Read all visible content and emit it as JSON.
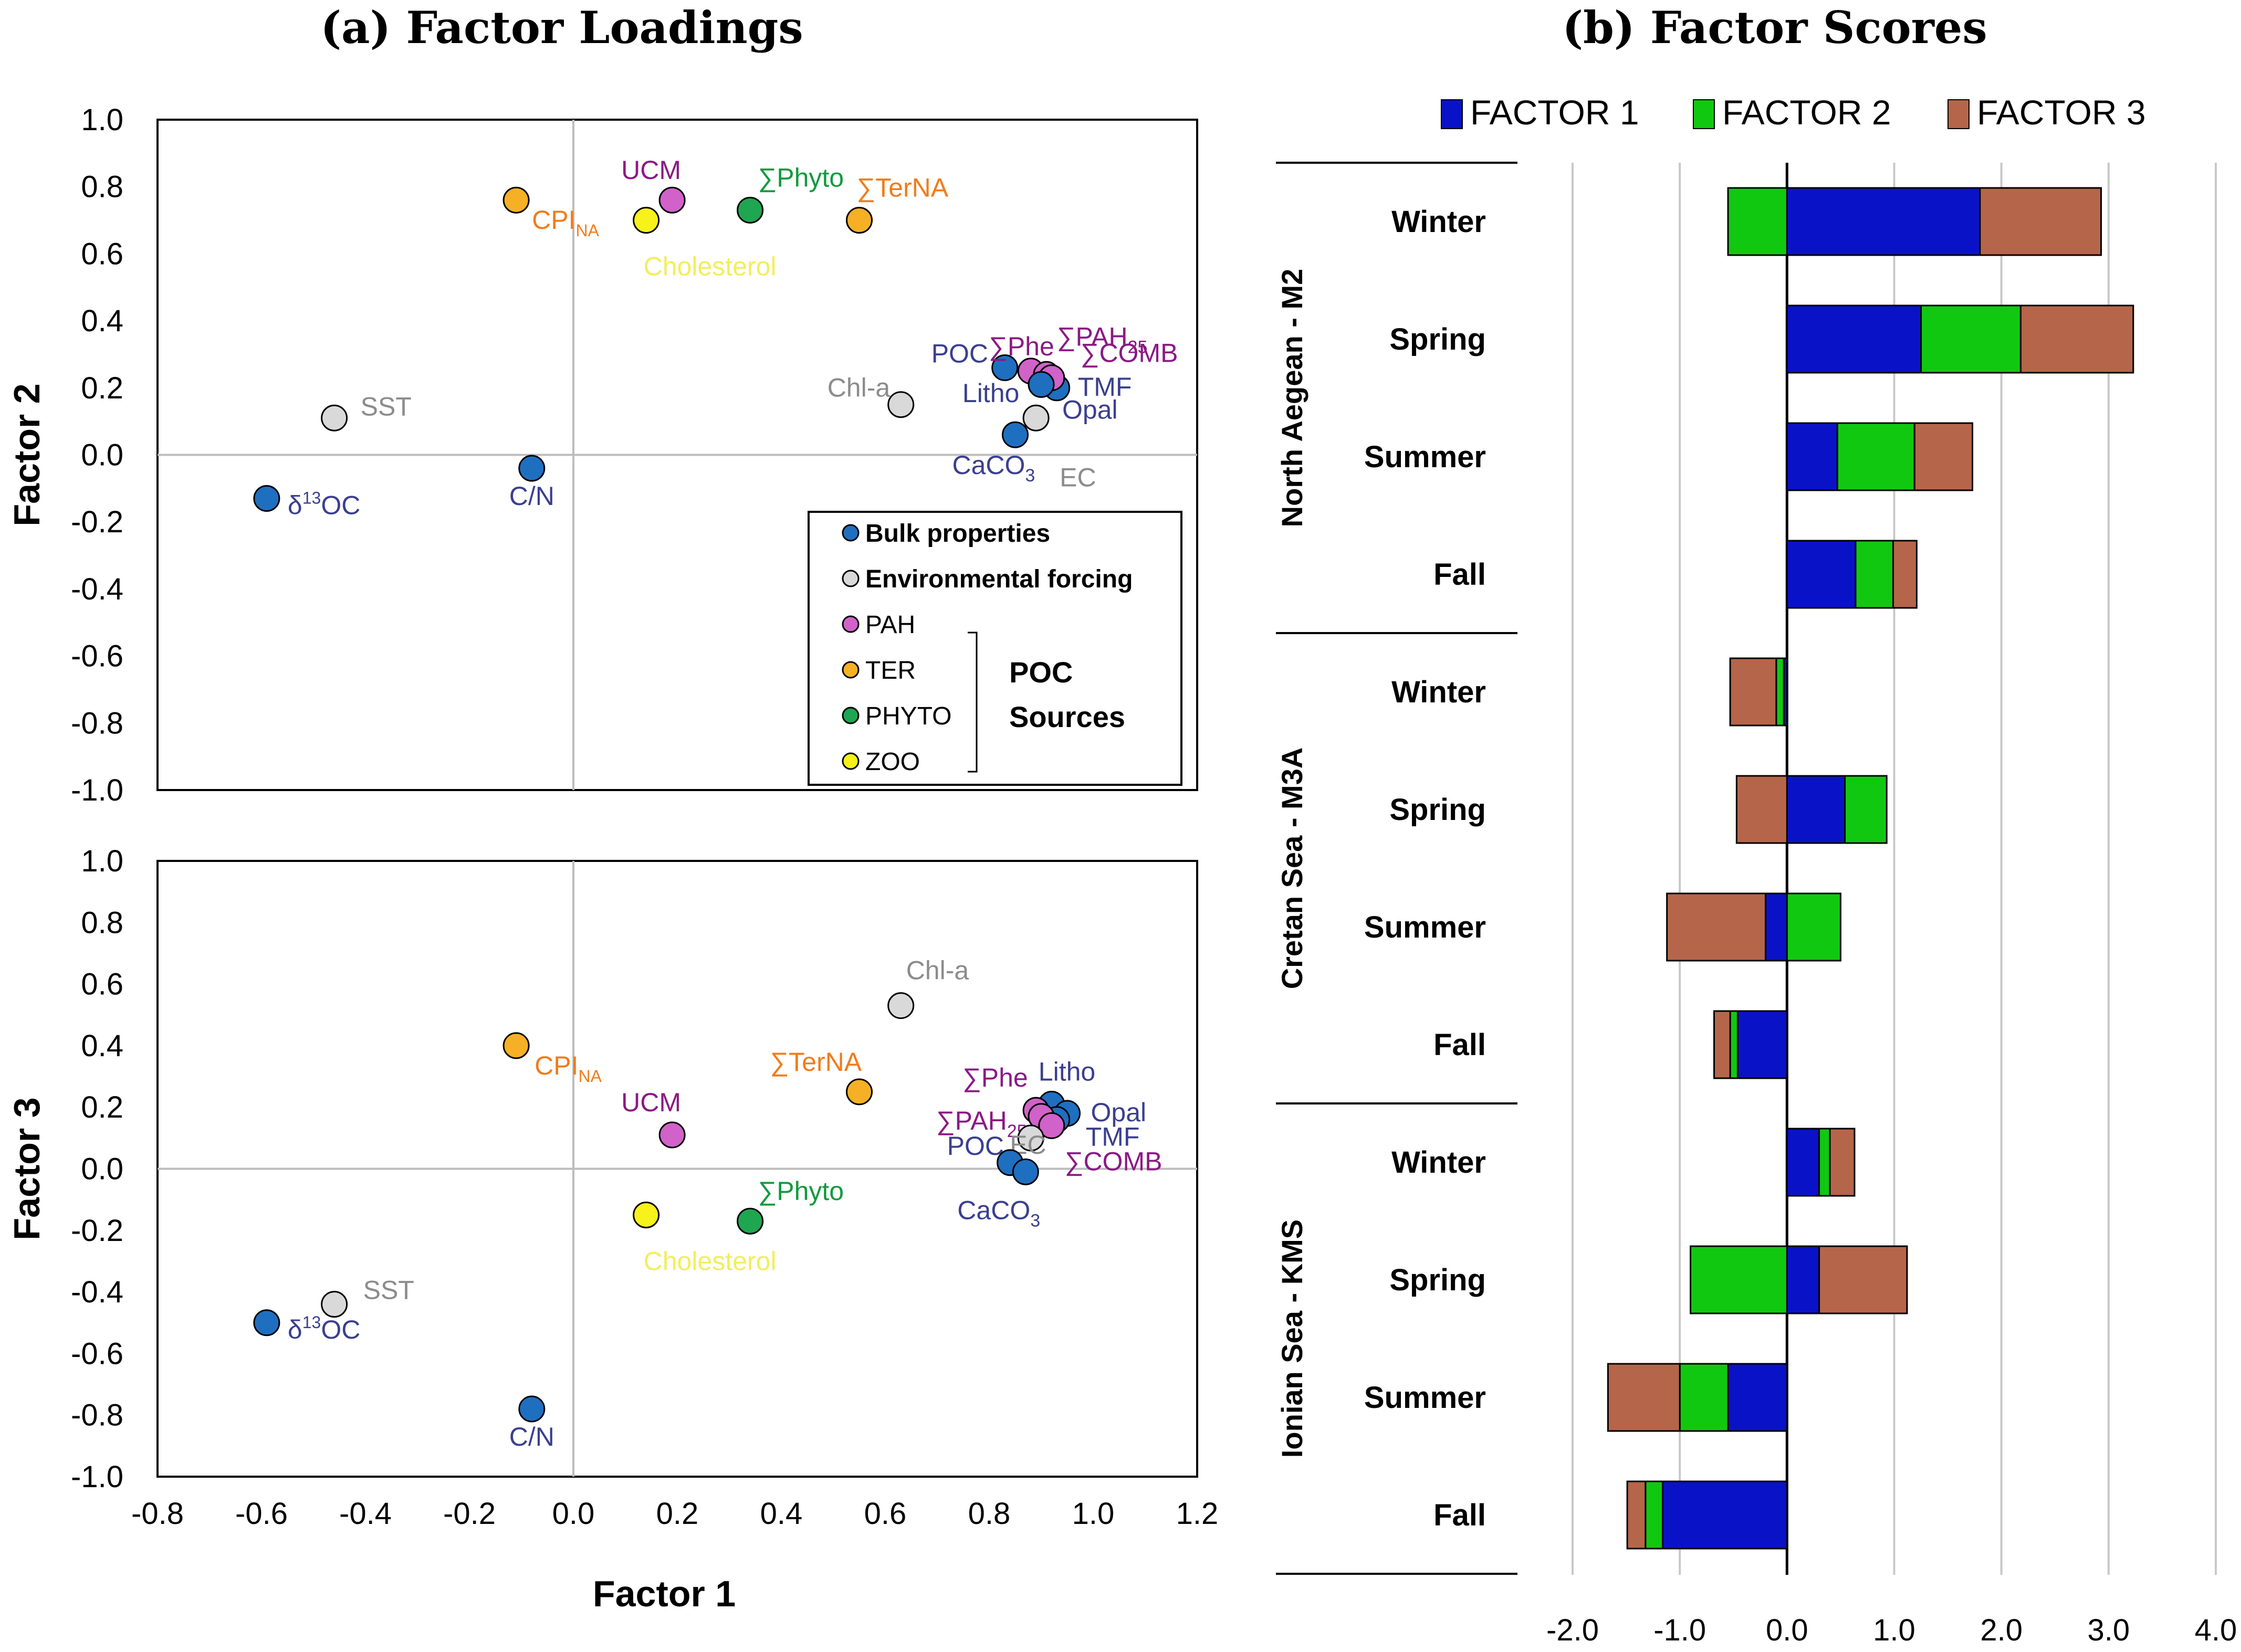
{
  "panel_a": {
    "title": "(a) Factor Loadings",
    "x_axis_label": "Factor 1",
    "x_ticks": [
      "-0.8",
      "-0.6",
      "-0.4",
      "-0.2",
      "0.0",
      "0.2",
      "0.4",
      "0.6",
      "0.8",
      "1.0",
      "1.2"
    ],
    "y_ticks": [
      "1.0",
      "0.8",
      "0.6",
      "0.4",
      "0.2",
      "0.0",
      "-0.2",
      "-0.4",
      "-0.6",
      "-0.8",
      "-1.0"
    ],
    "legend": {
      "items": [
        {
          "label": "Bulk properties",
          "color": "#1f6fc1",
          "bold": true
        },
        {
          "label": "Environmental forcing",
          "color": "#d9d9d9",
          "bold": true
        },
        {
          "label": "PAH",
          "color": "#d162c9",
          "bold": false
        },
        {
          "label": "TER",
          "color": "#f6b026",
          "bold": false
        },
        {
          "label": "PHYTO",
          "color": "#1fa651",
          "bold": false
        },
        {
          "label": "ZOO",
          "color": "#f7f21a",
          "bold": false
        }
      ],
      "group_label_1": "POC",
      "group_label_2": "Sources"
    }
  },
  "panel_b": {
    "title": "(b) Factor Scores",
    "x_ticks": [
      "-2.0",
      "-1.0",
      "0.0",
      "1.0",
      "2.0",
      "3.0",
      "4.0"
    ]
  },
  "chart_data": [
    {
      "type": "scatter",
      "title": "(a) Factor Loadings",
      "xlabel": "Factor 1",
      "ylabel": "Factor 2",
      "xlim": [
        -0.8,
        1.2
      ],
      "ylim": [
        -1.0,
        1.0
      ],
      "points": [
        {
          "label": "δ13OC",
          "group": "Bulk properties",
          "color": "#1f6fc1",
          "label_color": "#3b3f8f",
          "x": -0.59,
          "y": -0.13
        },
        {
          "label": "C/N",
          "group": "Bulk properties",
          "color": "#1f6fc1",
          "label_color": "#3b3f8f",
          "x": -0.08,
          "y": -0.04
        },
        {
          "label": "SST",
          "group": "Environmental forcing",
          "color": "#d9d9d9",
          "label_color": "#8c8c8c",
          "x": -0.46,
          "y": 0.11
        },
        {
          "label": "CPINA",
          "group": "TER",
          "color": "#f6b026",
          "label_color": "#f07c1c",
          "x": -0.11,
          "y": 0.76
        },
        {
          "label": "Cholesterol",
          "group": "ZOO",
          "color": "#f7f21a",
          "label_color": "#f2ee5c",
          "x": 0.14,
          "y": 0.7
        },
        {
          "label": "UCM",
          "group": "PAH",
          "color": "#d162c9",
          "label_color": "#8b1a84",
          "x": 0.19,
          "y": 0.76
        },
        {
          "label": "∑Phyto",
          "group": "PHYTO",
          "color": "#1fa651",
          "label_color": "#119a3e",
          "x": 0.34,
          "y": 0.73
        },
        {
          "label": "∑TerNA",
          "group": "TER",
          "color": "#f6b026",
          "label_color": "#f07c1c",
          "x": 0.55,
          "y": 0.7
        },
        {
          "label": "Chl-a",
          "group": "Environmental forcing",
          "color": "#d9d9d9",
          "label_color": "#8c8c8c",
          "x": 0.63,
          "y": 0.15
        },
        {
          "label": "POC",
          "group": "Bulk properties",
          "color": "#1f6fc1",
          "label_color": "#3b3f8f",
          "x": 0.83,
          "y": 0.26
        },
        {
          "label": "Litho",
          "group": "Bulk properties",
          "color": "#1f6fc1",
          "label_color": "#3b3f8f",
          "x": 0.91,
          "y": 0.22
        },
        {
          "label": "TMF",
          "group": "Bulk properties",
          "color": "#1f6fc1",
          "label_color": "#3b3f8f",
          "x": 0.93,
          "y": 0.2
        },
        {
          "label": "∑Phe",
          "group": "PAH",
          "color": "#d162c9",
          "label_color": "#8b1a84",
          "x": 0.88,
          "y": 0.25
        },
        {
          "label": "∑PAH25",
          "group": "PAH",
          "color": "#d162c9",
          "label_color": "#8b1a84",
          "x": 0.91,
          "y": 0.24
        },
        {
          "label": "∑COMB",
          "group": "PAH",
          "color": "#d162c9",
          "label_color": "#8b1a84",
          "x": 0.92,
          "y": 0.23
        },
        {
          "label": "Opal",
          "group": "Bulk properties",
          "color": "#1f6fc1",
          "label_color": "#3b3f8f",
          "x": 0.9,
          "y": 0.21
        },
        {
          "label": "EC",
          "group": "Environmental forcing",
          "color": "#d9d9d9",
          "label_color": "#8c8c8c",
          "x": 0.89,
          "y": 0.11
        },
        {
          "label": "CaCO3",
          "group": "Bulk properties",
          "color": "#1f6fc1",
          "label_color": "#3b3f8f",
          "x": 0.85,
          "y": 0.06
        }
      ]
    },
    {
      "type": "scatter",
      "xlabel": "Factor 1",
      "ylabel": "Factor 3",
      "xlim": [
        -0.8,
        1.2
      ],
      "ylim": [
        -1.0,
        1.0
      ],
      "points": [
        {
          "label": "δ13OC",
          "group": "Bulk properties",
          "color": "#1f6fc1",
          "label_color": "#3b3f8f",
          "x": -0.59,
          "y": -0.5
        },
        {
          "label": "SST",
          "group": "Environmental forcing",
          "color": "#d9d9d9",
          "label_color": "#8c8c8c",
          "x": -0.46,
          "y": -0.44
        },
        {
          "label": "C/N",
          "group": "Bulk properties",
          "color": "#1f6fc1",
          "label_color": "#3b3f8f",
          "x": -0.08,
          "y": -0.78
        },
        {
          "label": "CPINA",
          "group": "TER",
          "color": "#f6b026",
          "label_color": "#f07c1c",
          "x": -0.11,
          "y": 0.4
        },
        {
          "label": "UCM",
          "group": "PAH",
          "color": "#d162c9",
          "label_color": "#8b1a84",
          "x": 0.19,
          "y": 0.11
        },
        {
          "label": "Cholesterol",
          "group": "ZOO",
          "color": "#f7f21a",
          "label_color": "#f2ee5c",
          "x": 0.14,
          "y": -0.15
        },
        {
          "label": "∑Phyto",
          "group": "PHYTO",
          "color": "#1fa651",
          "label_color": "#119a3e",
          "x": 0.34,
          "y": -0.17
        },
        {
          "label": "∑TerNA",
          "group": "TER",
          "color": "#f6b026",
          "label_color": "#f07c1c",
          "x": 0.55,
          "y": 0.25
        },
        {
          "label": "Chl-a",
          "group": "Environmental forcing",
          "color": "#d9d9d9",
          "label_color": "#8c8c8c",
          "x": 0.63,
          "y": 0.53
        },
        {
          "label": "Litho",
          "group": "Bulk properties",
          "color": "#1f6fc1",
          "label_color": "#3b3f8f",
          "x": 0.92,
          "y": 0.21
        },
        {
          "label": "Opal",
          "group": "Bulk properties",
          "color": "#1f6fc1",
          "label_color": "#3b3f8f",
          "x": 0.95,
          "y": 0.18
        },
        {
          "label": "TMF",
          "group": "Bulk properties",
          "color": "#1f6fc1",
          "label_color": "#3b3f8f",
          "x": 0.93,
          "y": 0.16
        },
        {
          "label": "∑Phe",
          "group": "PAH",
          "color": "#d162c9",
          "label_color": "#8b1a84",
          "x": 0.89,
          "y": 0.19
        },
        {
          "label": "∑PAH25",
          "group": "PAH",
          "color": "#d162c9",
          "label_color": "#8b1a84",
          "x": 0.9,
          "y": 0.17
        },
        {
          "label": "∑COMB",
          "group": "PAH",
          "color": "#d162c9",
          "label_color": "#8b1a84",
          "x": 0.92,
          "y": 0.14
        },
        {
          "label": "EC",
          "group": "Environmental forcing",
          "color": "#d9d9d9",
          "label_color": "#8c8c8c",
          "x": 0.88,
          "y": 0.1
        },
        {
          "label": "POC",
          "group": "Bulk properties",
          "color": "#1f6fc1",
          "label_color": "#3b3f8f",
          "x": 0.84,
          "y": 0.02
        },
        {
          "label": "CaCO3",
          "group": "Bulk properties",
          "color": "#1f6fc1",
          "label_color": "#3b3f8f",
          "x": 0.87,
          "y": -0.01
        }
      ]
    },
    {
      "type": "bar",
      "title": "(b) Factor Scores",
      "orientation": "horizontal",
      "stacked": true,
      "xlim": [
        -2.0,
        4.0
      ],
      "legend_position": "top",
      "series": [
        {
          "name": "FACTOR 1",
          "color": "#0a12c8"
        },
        {
          "name": "FACTOR 2",
          "color": "#11c811"
        },
        {
          "name": "FACTOR 3",
          "color": "#b5654a"
        }
      ],
      "groups": [
        {
          "name": "North Aegean - M2",
          "seasons": [
            {
              "season": "Winter",
              "values": [
                1.8,
                -0.55,
                1.13
              ]
            },
            {
              "season": "Spring",
              "values": [
                1.25,
                0.93,
                1.05
              ]
            },
            {
              "season": "Summer",
              "values": [
                0.47,
                0.72,
                0.54
              ]
            },
            {
              "season": "Fall",
              "values": [
                0.64,
                0.35,
                0.22
              ]
            }
          ]
        },
        {
          "name": "Cretan Sea - M3A",
          "seasons": [
            {
              "season": "Winter",
              "values": [
                -0.03,
                -0.07,
                -0.43
              ]
            },
            {
              "season": "Spring",
              "values": [
                0.54,
                0.39,
                -0.47
              ]
            },
            {
              "season": "Summer",
              "values": [
                -0.2,
                0.5,
                -0.92
              ]
            },
            {
              "season": "Fall",
              "values": [
                -0.46,
                -0.07,
                -0.15
              ]
            }
          ]
        },
        {
          "name": "Ionian Sea - KMS",
          "seasons": [
            {
              "season": "Winter",
              "values": [
                0.3,
                0.1,
                0.23
              ]
            },
            {
              "season": "Spring",
              "values": [
                0.3,
                -0.9,
                0.82
              ]
            },
            {
              "season": "Summer",
              "values": [
                -0.55,
                -0.45,
                -0.67
              ]
            },
            {
              "season": "Fall",
              "values": [
                -1.16,
                -0.16,
                -0.17
              ]
            }
          ]
        }
      ]
    }
  ]
}
